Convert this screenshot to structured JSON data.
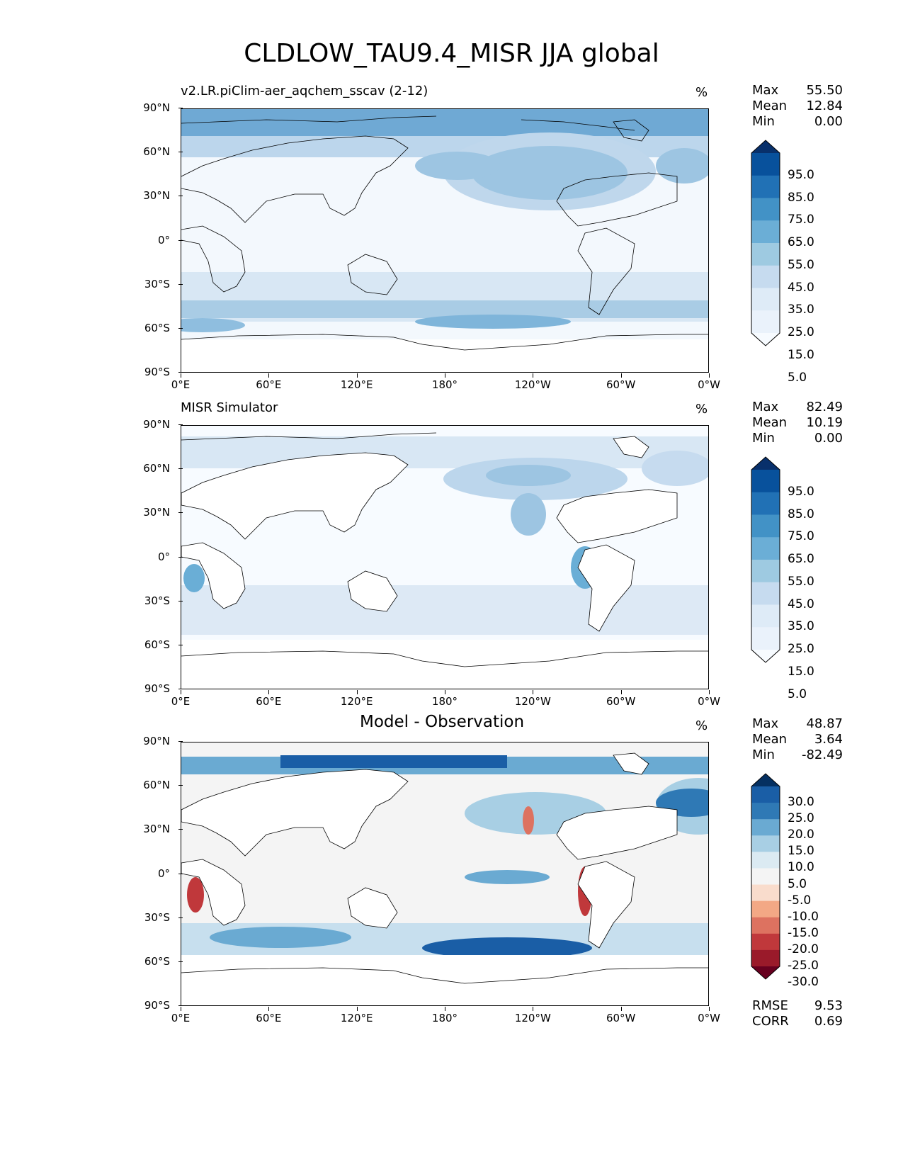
{
  "title": "CLDLOW_TAU9.4_MISR JJA global",
  "lat_labels": [
    "90°N",
    "60°N",
    "30°N",
    "0°",
    "30°S",
    "60°S",
    "90°S"
  ],
  "lon_labels": [
    "0°E",
    "60°E",
    "120°E",
    "180°",
    "120°W",
    "60°W",
    "0°W"
  ],
  "panels": [
    {
      "subtitle": "v2.LR.piClim-aer_aqchem_sscav (2-12)",
      "units": "%",
      "stats": {
        "max_label": "Max",
        "max": "55.50",
        "mean_label": "Mean",
        "mean": "12.84",
        "min_label": "Min",
        "min": "0.00"
      },
      "colorbar_labels": [
        "95.0",
        "85.0",
        "75.0",
        "65.0",
        "55.0",
        "45.0",
        "35.0",
        "25.0",
        "15.0",
        "5.0"
      ],
      "colors": [
        "#08306b",
        "#08519c",
        "#2171b5",
        "#4292c6",
        "#6baed6",
        "#9ecae1",
        "#c6dbef",
        "#deebf7",
        "#eaf2fb",
        "#f7fbff"
      ]
    },
    {
      "subtitle": "MISR Simulator",
      "units": "%",
      "stats": {
        "max_label": "Max",
        "max": "82.49",
        "mean_label": "Mean",
        "mean": "10.19",
        "min_label": "Min",
        "min": "0.00"
      },
      "colorbar_labels": [
        "95.0",
        "85.0",
        "75.0",
        "65.0",
        "55.0",
        "45.0",
        "35.0",
        "25.0",
        "15.0",
        "5.0"
      ],
      "colors": [
        "#08306b",
        "#08519c",
        "#2171b5",
        "#4292c6",
        "#6baed6",
        "#9ecae1",
        "#c6dbef",
        "#deebf7",
        "#eaf2fb",
        "#f7fbff"
      ]
    },
    {
      "subtitle": "Model - Observation",
      "units": "%",
      "stats": {
        "max_label": "Max",
        "max": "48.87",
        "mean_label": "Mean",
        "mean": "3.64",
        "min_label": "Min",
        "min": "-82.49"
      },
      "colorbar_labels": [
        "30.0",
        "25.0",
        "20.0",
        "15.0",
        "10.0",
        "5.0",
        "-5.0",
        "-10.0",
        "-15.0",
        "-20.0",
        "-25.0",
        "-30.0"
      ],
      "colors": [
        "#053061",
        "#1a5ea6",
        "#2f79b5",
        "#6aaad2",
        "#a8cfe4",
        "#dbeaf2",
        "#f4f4f4",
        "#f9dccc",
        "#f3a885",
        "#dd7260",
        "#c0383b",
        "#9a1a2a",
        "#67001f"
      ],
      "metrics": {
        "rmse_label": "RMSE",
        "rmse": "9.53",
        "corr_label": "CORR",
        "corr": "0.69"
      }
    }
  ],
  "chart_data": {
    "type": "map",
    "title": "CLDLOW_TAU9.4_MISR JJA global",
    "maps": [
      {
        "name": "v2.LR.piClim-aer_aqchem_sscav (2-12)",
        "units": "%",
        "max": 55.5,
        "mean": 12.84,
        "min": 0.0,
        "levels": [
          5,
          15,
          25,
          35,
          45,
          55,
          65,
          75,
          85,
          95
        ],
        "xlim": [
          0,
          360
        ],
        "ylim": [
          -90,
          90
        ]
      },
      {
        "name": "MISR Simulator",
        "units": "%",
        "max": 82.49,
        "mean": 10.19,
        "min": 0.0,
        "levels": [
          5,
          15,
          25,
          35,
          45,
          55,
          65,
          75,
          85,
          95
        ],
        "xlim": [
          0,
          360
        ],
        "ylim": [
          -90,
          90
        ]
      },
      {
        "name": "Model - Observation",
        "units": "%",
        "max": 48.87,
        "mean": 3.64,
        "min": -82.49,
        "levels": [
          -30,
          -25,
          -20,
          -15,
          -10,
          -5,
          5,
          10,
          15,
          20,
          25,
          30
        ],
        "rmse": 9.53,
        "corr": 0.69,
        "xlim": [
          0,
          360
        ],
        "ylim": [
          -90,
          90
        ]
      }
    ]
  }
}
